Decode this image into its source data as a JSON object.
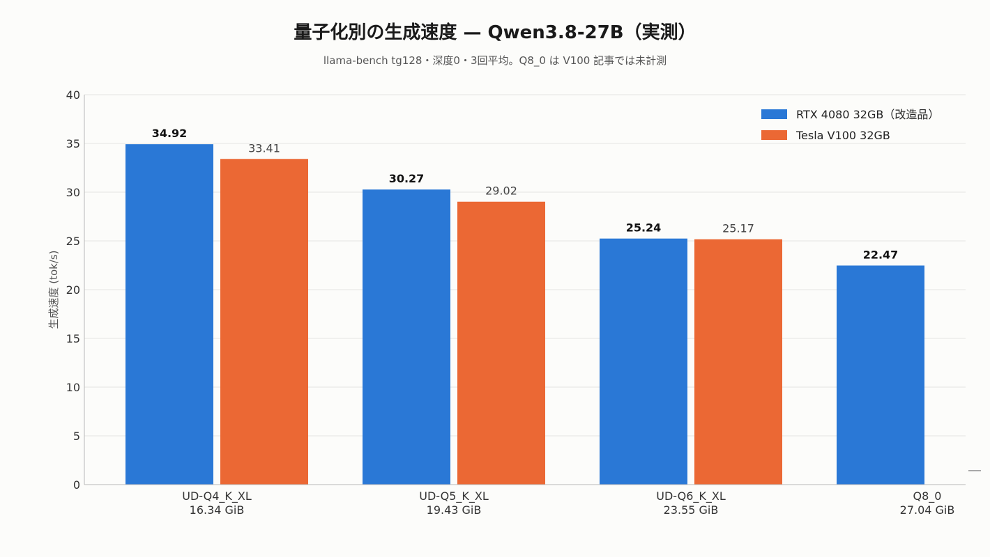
{
  "chart_data": {
    "type": "bar",
    "title": "量子化別の生成速度 — Qwen3.8-27B（実測）",
    "subtitle": "llama-bench tg128・深度0・3回平均。Q8_0 は V100 記事では未計測",
    "ylabel": "生成速度 (tok/s)",
    "xlabel": "",
    "ylim": [
      0,
      40
    ],
    "yticks": [
      0,
      5,
      10,
      15,
      20,
      25,
      30,
      35,
      40
    ],
    "grid": true,
    "legend_position": "top-right",
    "categories": [
      {
        "name": "UD-Q4_K_XL",
        "size": "16.34 GiB"
      },
      {
        "name": "UD-Q5_K_XL",
        "size": "19.43 GiB"
      },
      {
        "name": "UD-Q6_K_XL",
        "size": "23.55 GiB"
      },
      {
        "name": "Q8_0",
        "size": "27.04 GiB"
      }
    ],
    "series": [
      {
        "name": "RTX 4080 32GB（改造品）",
        "color": "#2a78d6",
        "values": [
          34.92,
          30.27,
          25.24,
          22.47
        ],
        "labels": [
          "34.92",
          "30.27",
          "25.24",
          "22.47"
        ]
      },
      {
        "name": "Tesla V100 32GB",
        "color": "#eb6834",
        "values": [
          33.41,
          29.02,
          25.17,
          null
        ],
        "labels": [
          "33.41",
          "29.02",
          "25.17",
          ""
        ]
      }
    ]
  }
}
